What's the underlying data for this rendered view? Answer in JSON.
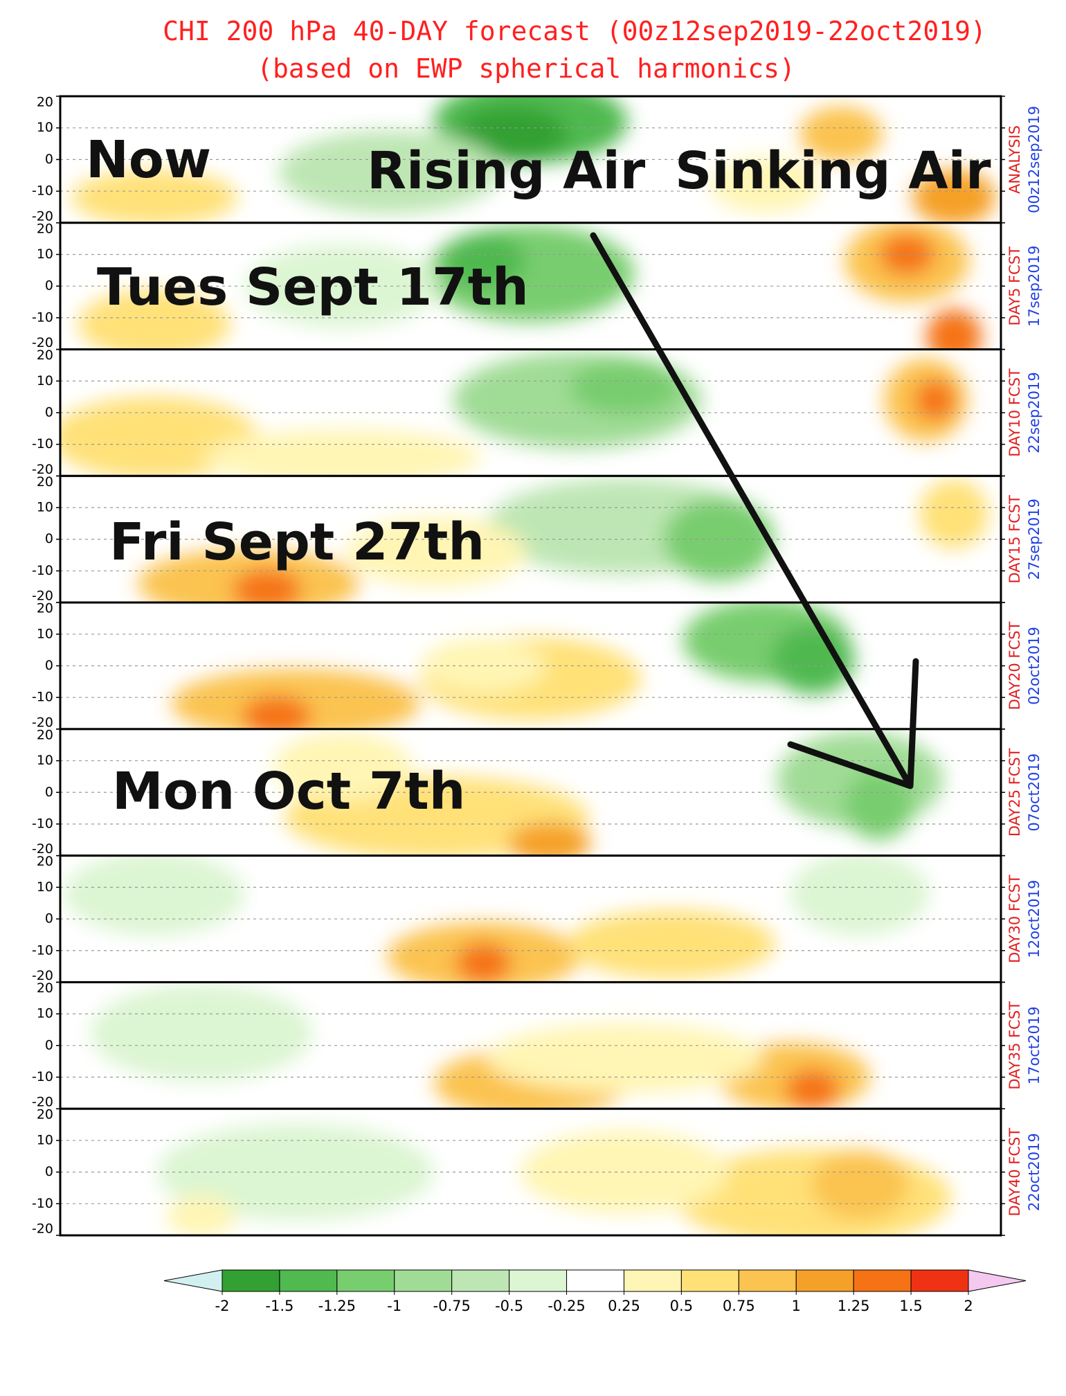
{
  "title": "CHI 200 hPa 40-DAY forecast (00z12sep2019-22oct2019)",
  "subtitle": "(based on EWP spherical harmonics)",
  "ylim": [
    -20,
    20
  ],
  "yticks": [
    20,
    10,
    0,
    -10,
    -20
  ],
  "panels": [
    {
      "label": "ANALYSIS",
      "date": "00z12sep2019"
    },
    {
      "label": "DAY5 FCST",
      "date": "17sep2019"
    },
    {
      "label": "DAY10 FCST",
      "date": "22sep2019"
    },
    {
      "label": "DAY15 FCST",
      "date": "27sep2019"
    },
    {
      "label": "DAY20 FCST",
      "date": "02oct2019"
    },
    {
      "label": "DAY25 FCST",
      "date": "07oct2019"
    },
    {
      "label": "DAY30 FCST",
      "date": "12oct2019"
    },
    {
      "label": "DAY35 FCST",
      "date": "17oct2019"
    },
    {
      "label": "DAY40 FCST",
      "date": "22oct2019"
    }
  ],
  "annotations": [
    "Now",
    "Rising Air",
    "Sinking Air",
    "Tues Sept 17th",
    "Fri Sept 27th",
    "Mon Oct 7th"
  ],
  "colorbar": {
    "ticks": [
      -2,
      -1.5,
      -1.25,
      -1,
      -0.75,
      -0.5,
      -0.25,
      0.25,
      0.5,
      0.75,
      1,
      1.25,
      1.5,
      2
    ],
    "colors": [
      "#32a032",
      "#50b950",
      "#78cd6e",
      "#a0dc96",
      "#bee6b4",
      "#dcf5d2",
      "#ffffff",
      "#fff5b4",
      "#ffe178",
      "#fbc350",
      "#f5a028",
      "#f57314",
      "#f03214"
    ],
    "low_color": "#d2f0f0",
    "high_color": "#f5c8f0"
  }
}
